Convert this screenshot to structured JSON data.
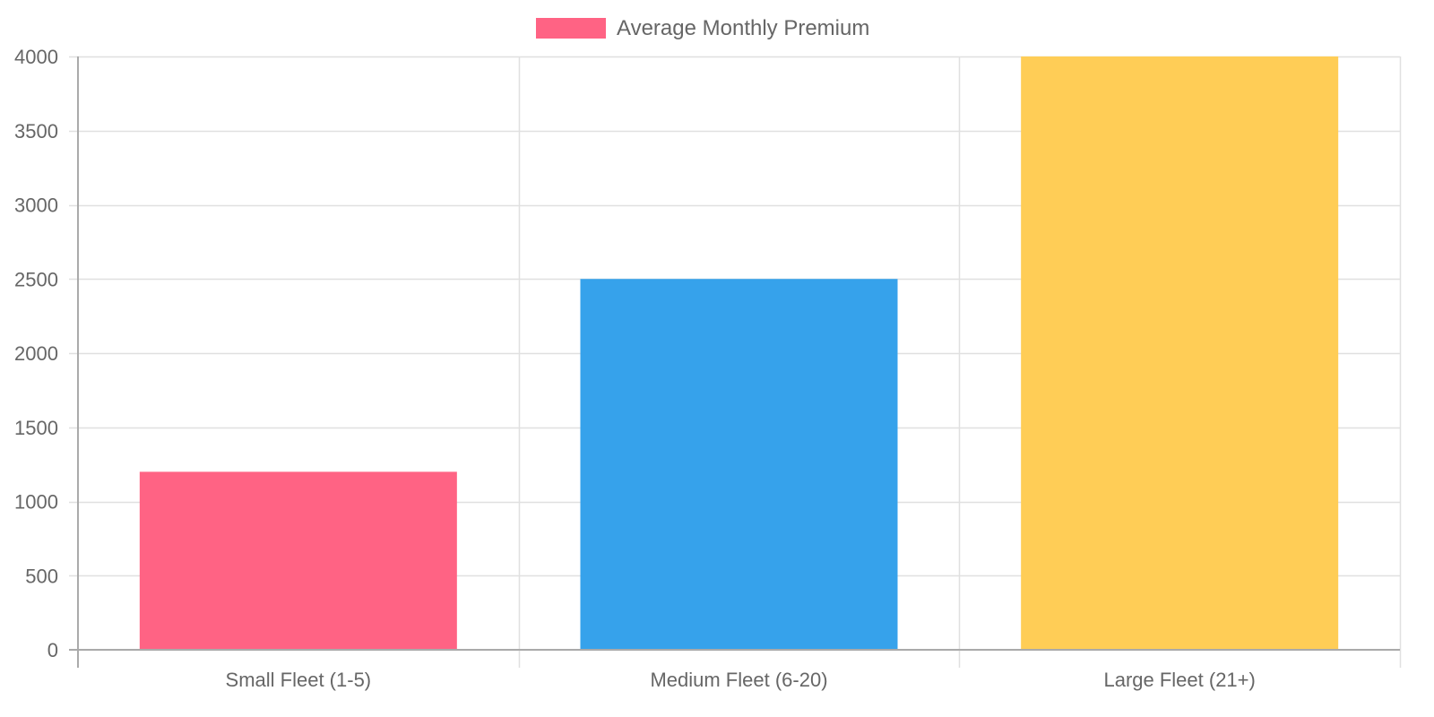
{
  "chart_data": {
    "type": "bar",
    "title": "",
    "xlabel": "",
    "ylabel": "",
    "categories": [
      "Small Fleet (1-5)",
      "Medium Fleet (6-20)",
      "Large Fleet (21+)"
    ],
    "series": [
      {
        "name": "Average Monthly Premium",
        "values": [
          1200,
          2500,
          4000
        ],
        "colors": [
          "#ff6384",
          "#36a2eb",
          "#ffcd56"
        ]
      }
    ],
    "ylim": [
      0,
      4000
    ],
    "y_ticks": [
      0,
      500,
      1000,
      1500,
      2000,
      2500,
      3000,
      3500,
      4000
    ],
    "grid": true,
    "legend_position": "top"
  }
}
